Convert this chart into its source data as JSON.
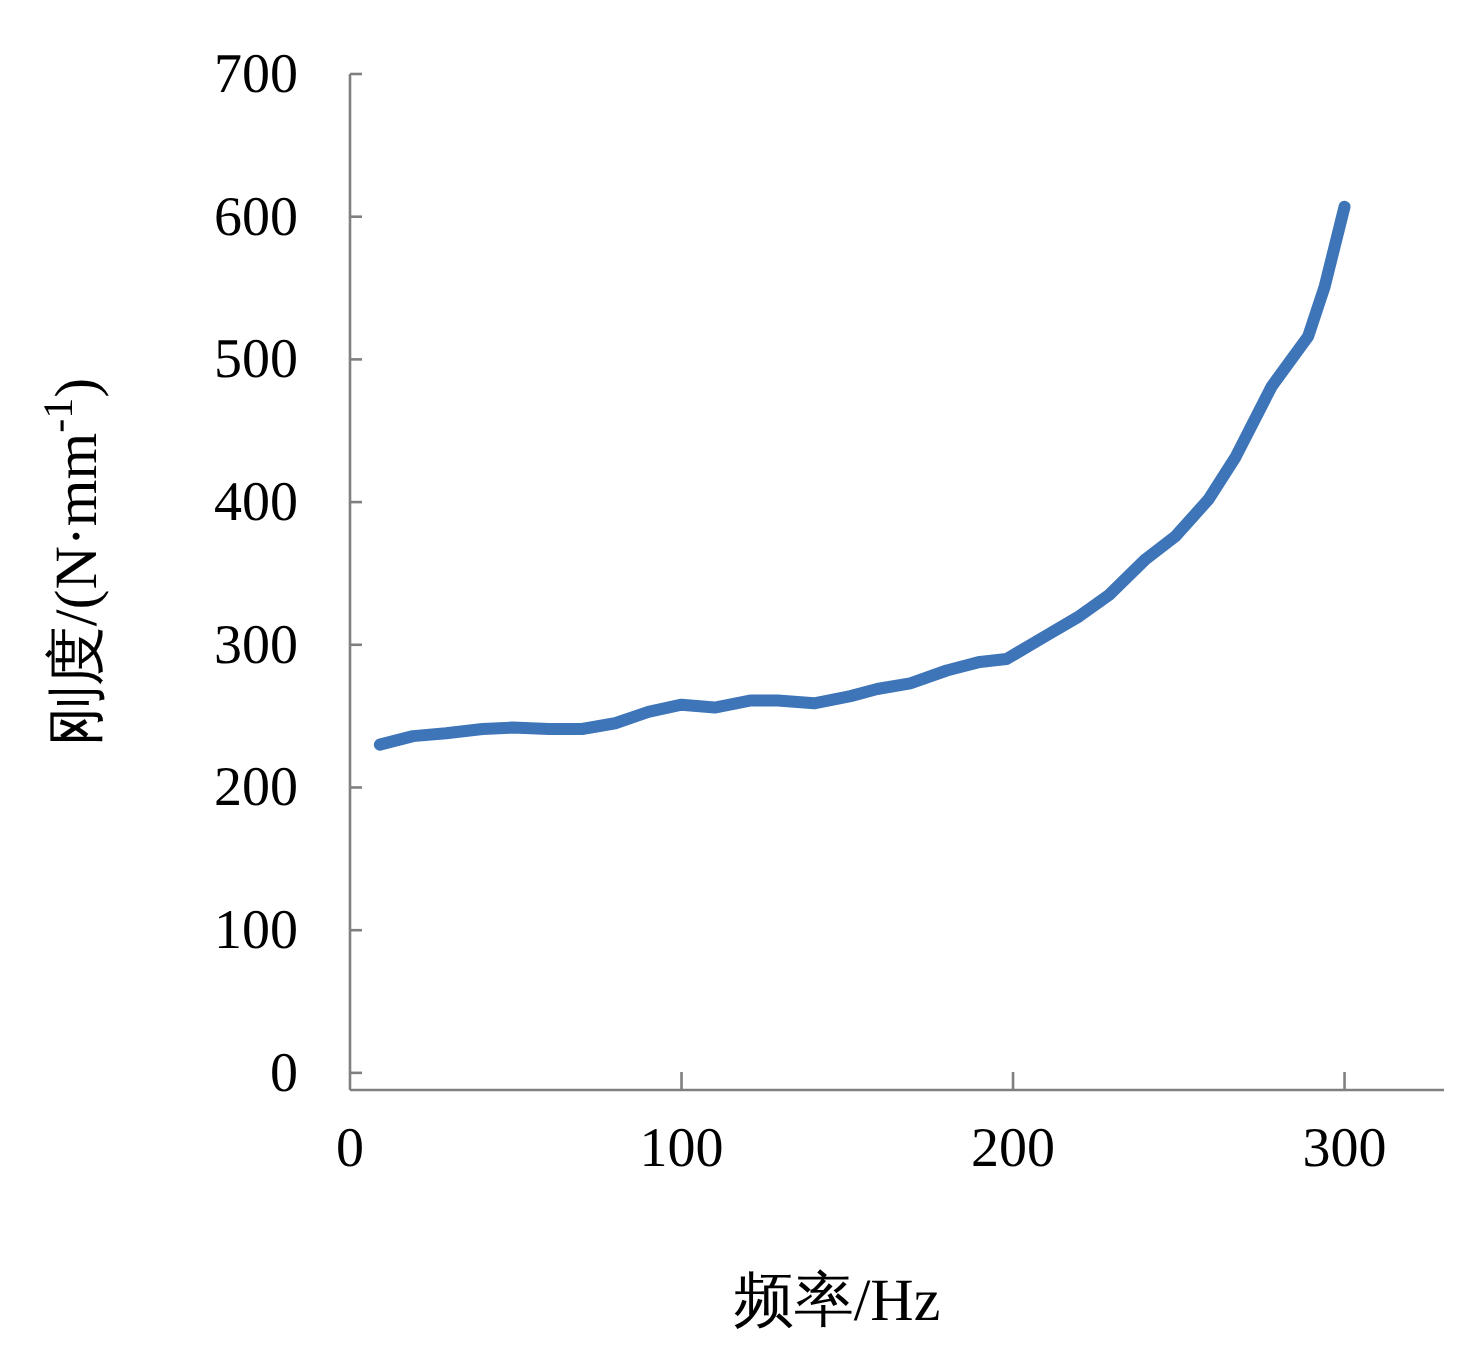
{
  "chart_data": {
    "type": "line",
    "xlabel": "频率/Hz",
    "ylabel": "刚度/(N·mm$^{-1}$)",
    "xlim": [
      0,
      330
    ],
    "ylim": [
      -12,
      700
    ],
    "xticks": [
      0,
      100,
      200,
      300
    ],
    "yticks": [
      0,
      100,
      200,
      300,
      400,
      500,
      600,
      700
    ],
    "x": [
      9,
      19,
      29,
      40,
      49,
      60,
      70,
      80,
      90,
      100,
      110,
      121,
      129,
      140,
      151,
      159,
      169,
      180,
      190,
      198,
      209,
      220,
      229,
      240,
      249,
      259,
      267,
      278,
      289,
      294,
      300
    ],
    "series": [
      {
        "color": "#3e75b8",
        "values": [
          230,
          236,
          238,
          241,
          242,
          241,
          241,
          245,
          253,
          258,
          256,
          261,
          261,
          259,
          264,
          269,
          273,
          282,
          288,
          290,
          305,
          320,
          335,
          360,
          376,
          402,
          431,
          481,
          516,
          551,
          607
        ]
      }
    ]
  }
}
